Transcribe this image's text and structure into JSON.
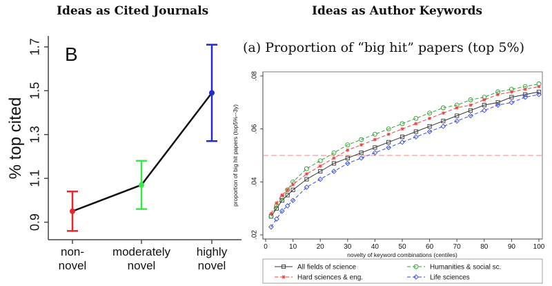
{
  "left_title": "Ideas as Cited Journals",
  "right_title": "Ideas as Author Keywords",
  "right_subtitle": "(a) Proportion of “big hit” papers (top 5%)",
  "chart_data": [
    {
      "type": "line",
      "panel_label": "B",
      "ylabel": "% top cited",
      "categories": [
        "non-\nnovel",
        "moderately\nnovel",
        "highly\nnovel"
      ],
      "yticks": [
        "0.9",
        "1.1",
        "1.3",
        "1.5",
        "1.7"
      ],
      "ylim": [
        0.82,
        1.75
      ],
      "values": [
        0.95,
        1.07,
        1.49
      ],
      "error_low": [
        0.86,
        0.96,
        1.27
      ],
      "error_high": [
        1.04,
        1.18,
        1.71
      ],
      "colors": [
        "#e5262b",
        "#35e84a",
        "#1f2bd6"
      ],
      "line_color": "#111111"
    },
    {
      "type": "line",
      "xlabel": "novelty of keyword combinations (centiles)",
      "ylabel": "proportion of big hit papers (top5%--3y)",
      "xlim": [
        0,
        100
      ],
      "ylim": [
        0.02,
        0.08
      ],
      "xticks": [
        0,
        10,
        20,
        30,
        40,
        50,
        60,
        70,
        80,
        90,
        100
      ],
      "yticks": [
        ".02",
        ".04",
        ".06",
        ".08"
      ],
      "reference_line": 0.05,
      "reference_color": "#f08080",
      "x": [
        2,
        4,
        6,
        8,
        10,
        15,
        20,
        25,
        30,
        35,
        40,
        45,
        50,
        55,
        60,
        65,
        70,
        75,
        80,
        85,
        90,
        95,
        100
      ],
      "series": [
        {
          "name": "All fields of science",
          "color": "#333333",
          "marker": "square",
          "values": [
            0.027,
            0.03,
            0.033,
            0.035,
            0.037,
            0.041,
            0.044,
            0.047,
            0.049,
            0.051,
            0.053,
            0.055,
            0.057,
            0.059,
            0.061,
            0.063,
            0.065,
            0.067,
            0.069,
            0.07,
            0.072,
            0.073,
            0.074
          ]
        },
        {
          "name": "Humanities & social sc.",
          "color": "#2f9e2f",
          "marker": "circle",
          "values": [
            0.027,
            0.031,
            0.034,
            0.037,
            0.04,
            0.045,
            0.048,
            0.051,
            0.054,
            0.056,
            0.058,
            0.06,
            0.062,
            0.064,
            0.066,
            0.068,
            0.069,
            0.071,
            0.072,
            0.074,
            0.075,
            0.076,
            0.077
          ]
        },
        {
          "name": "Hard sciences & eng.",
          "color": "#e8413e",
          "marker": "star",
          "values": [
            0.028,
            0.032,
            0.035,
            0.037,
            0.039,
            0.043,
            0.046,
            0.049,
            0.052,
            0.054,
            0.056,
            0.058,
            0.06,
            0.062,
            0.064,
            0.066,
            0.068,
            0.069,
            0.071,
            0.073,
            0.074,
            0.075,
            0.076
          ]
        },
        {
          "name": "Life sciences",
          "color": "#3348e0",
          "marker": "diamond",
          "values": [
            0.023,
            0.026,
            0.029,
            0.031,
            0.033,
            0.038,
            0.041,
            0.044,
            0.047,
            0.049,
            0.051,
            0.053,
            0.055,
            0.057,
            0.059,
            0.061,
            0.063,
            0.065,
            0.067,
            0.069,
            0.07,
            0.072,
            0.073
          ]
        }
      ],
      "legend_position": "bottom"
    }
  ]
}
